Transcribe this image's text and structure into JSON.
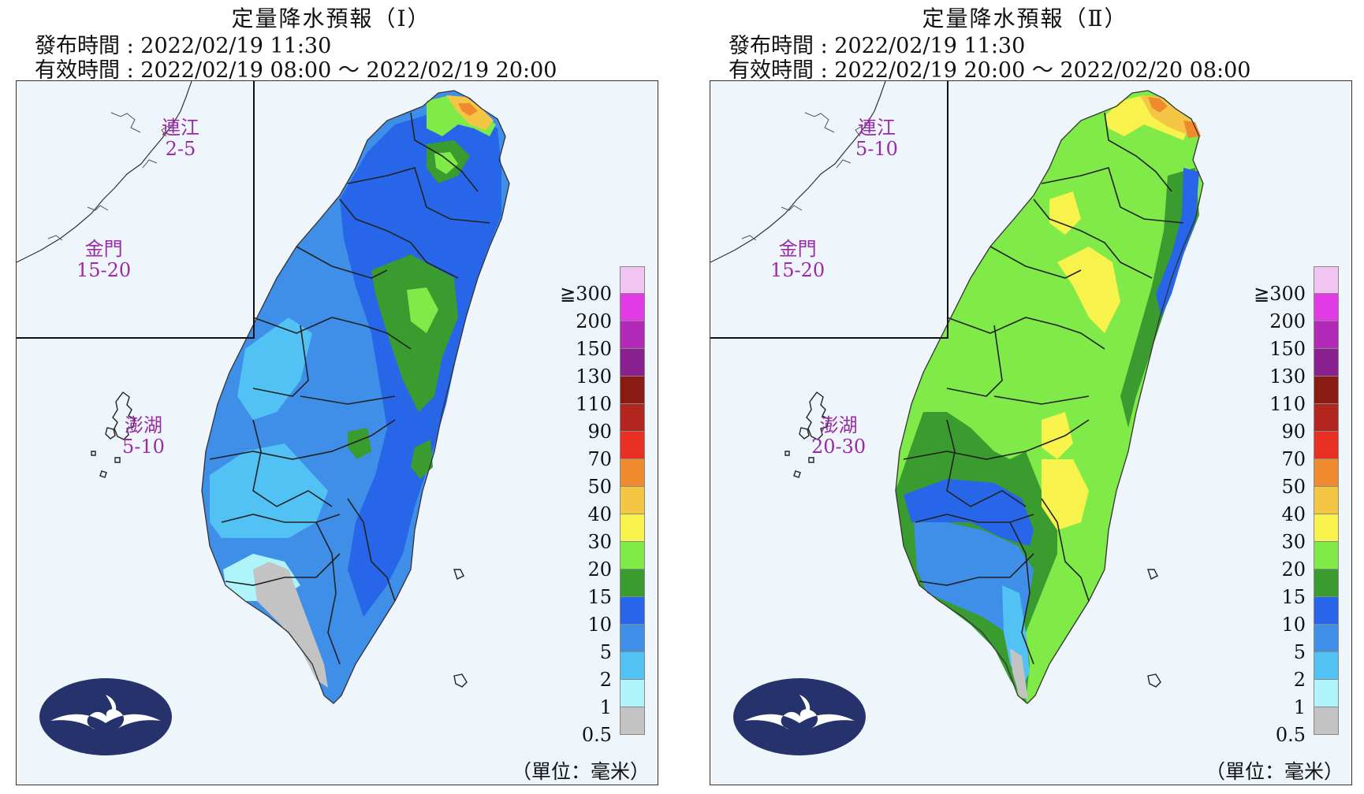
{
  "panels": [
    {
      "title": "定量降水預報（Ⅰ）",
      "issued": "發布時間 : 2022/02/19 11:30",
      "valid": "有效時間 : 2022/02/19 08:00 ～ 2022/02/19 20:00",
      "lienchiang": {
        "name": "連江",
        "range": "2-5"
      },
      "kinmen": {
        "name": "金門",
        "range": "15-20"
      },
      "penghu": {
        "name": "澎湖",
        "range": "5-10"
      },
      "unit": "（單位：毫米）"
    },
    {
      "title": "定量降水預報（Ⅱ）",
      "issued": "發布時間 : 2022/02/19 11:30",
      "valid": "有效時間 : 2022/02/19 20:00 ～ 2022/02/20 08:00",
      "lienchiang": {
        "name": "連江",
        "range": "5-10"
      },
      "kinmen": {
        "name": "金門",
        "range": "15-20"
      },
      "penghu": {
        "name": "澎湖",
        "range": "20-30"
      },
      "unit": "（單位：毫米）"
    }
  ],
  "legend": {
    "ticks": [
      "≧300",
      "200",
      "150",
      "130",
      "110",
      "90",
      "70",
      "50",
      "40",
      "30",
      "20",
      "15",
      "10",
      "5",
      "2",
      "1",
      "0.5"
    ],
    "colors": [
      "#f2c4f2",
      "#e23ae6",
      "#b42ab8",
      "#8a1f8f",
      "#8b1a12",
      "#b3251f",
      "#e83022",
      "#ef8b2e",
      "#f4c644",
      "#f7f34c",
      "#7fea48",
      "#3a9b2f",
      "#2766e8",
      "#3f8ee8",
      "#52c2f4",
      "#aef4fa",
      "#c3c3c3"
    ]
  },
  "map_colors": {
    "sea": "#eef5fb",
    "boundary": "#222222"
  },
  "logo_icon": "cwb-cloud-logo-icon"
}
